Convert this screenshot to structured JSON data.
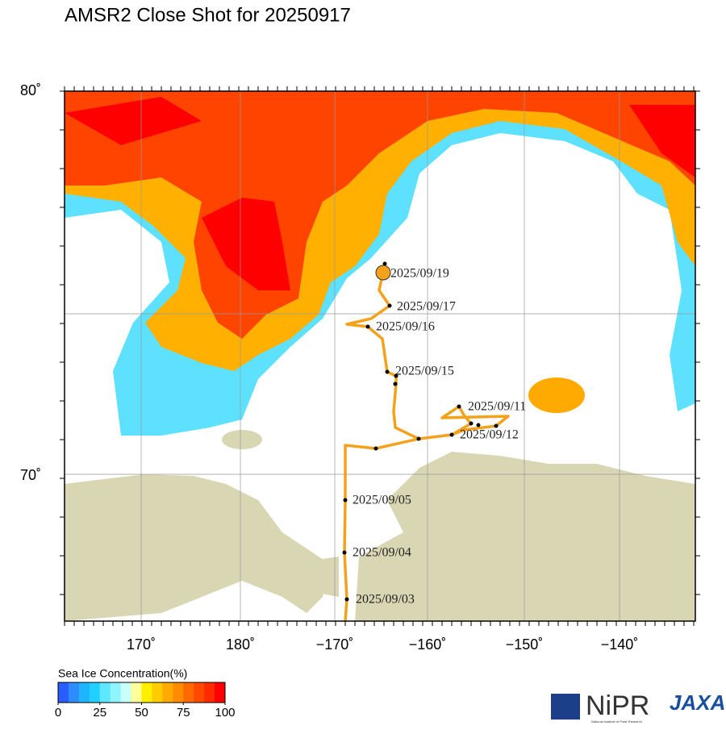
{
  "title": "AMSR2 Close Shot for 20250917",
  "lat_labels": [
    "80˚",
    "70˚"
  ],
  "lon_labels": [
    "170˚",
    "180˚",
    "−170˚",
    "−160˚",
    "−150˚",
    "−140˚"
  ],
  "track_labels": [
    "2025/09/19",
    "2025/09/17",
    "2025/09/16",
    "2025/09/15",
    "2025/09/11",
    "2025/09/12",
    "2025/09/05",
    "2025/09/04",
    "2025/09/03"
  ],
  "colorbar": {
    "title": "Sea Ice Concentration(%)",
    "ticks": [
      0,
      25,
      50,
      75,
      100
    ],
    "range": [
      0,
      100
    ],
    "colors": [
      "#2a5cff",
      "#2f8cff",
      "#1fb4ff",
      "#22d0ff",
      "#5ee8ff",
      "#8ff4ff",
      "#c8fff8",
      "#ffff9a",
      "#ffee00",
      "#ffcc00",
      "#ffaa00",
      "#ff8c00",
      "#ff6a00",
      "#ff4a00",
      "#ff2a00",
      "#ff0000"
    ]
  },
  "logos": {
    "nipr": "NiPR",
    "nipr_sub": "National Institute of Polar Research",
    "jaxa": "JAXA"
  }
}
